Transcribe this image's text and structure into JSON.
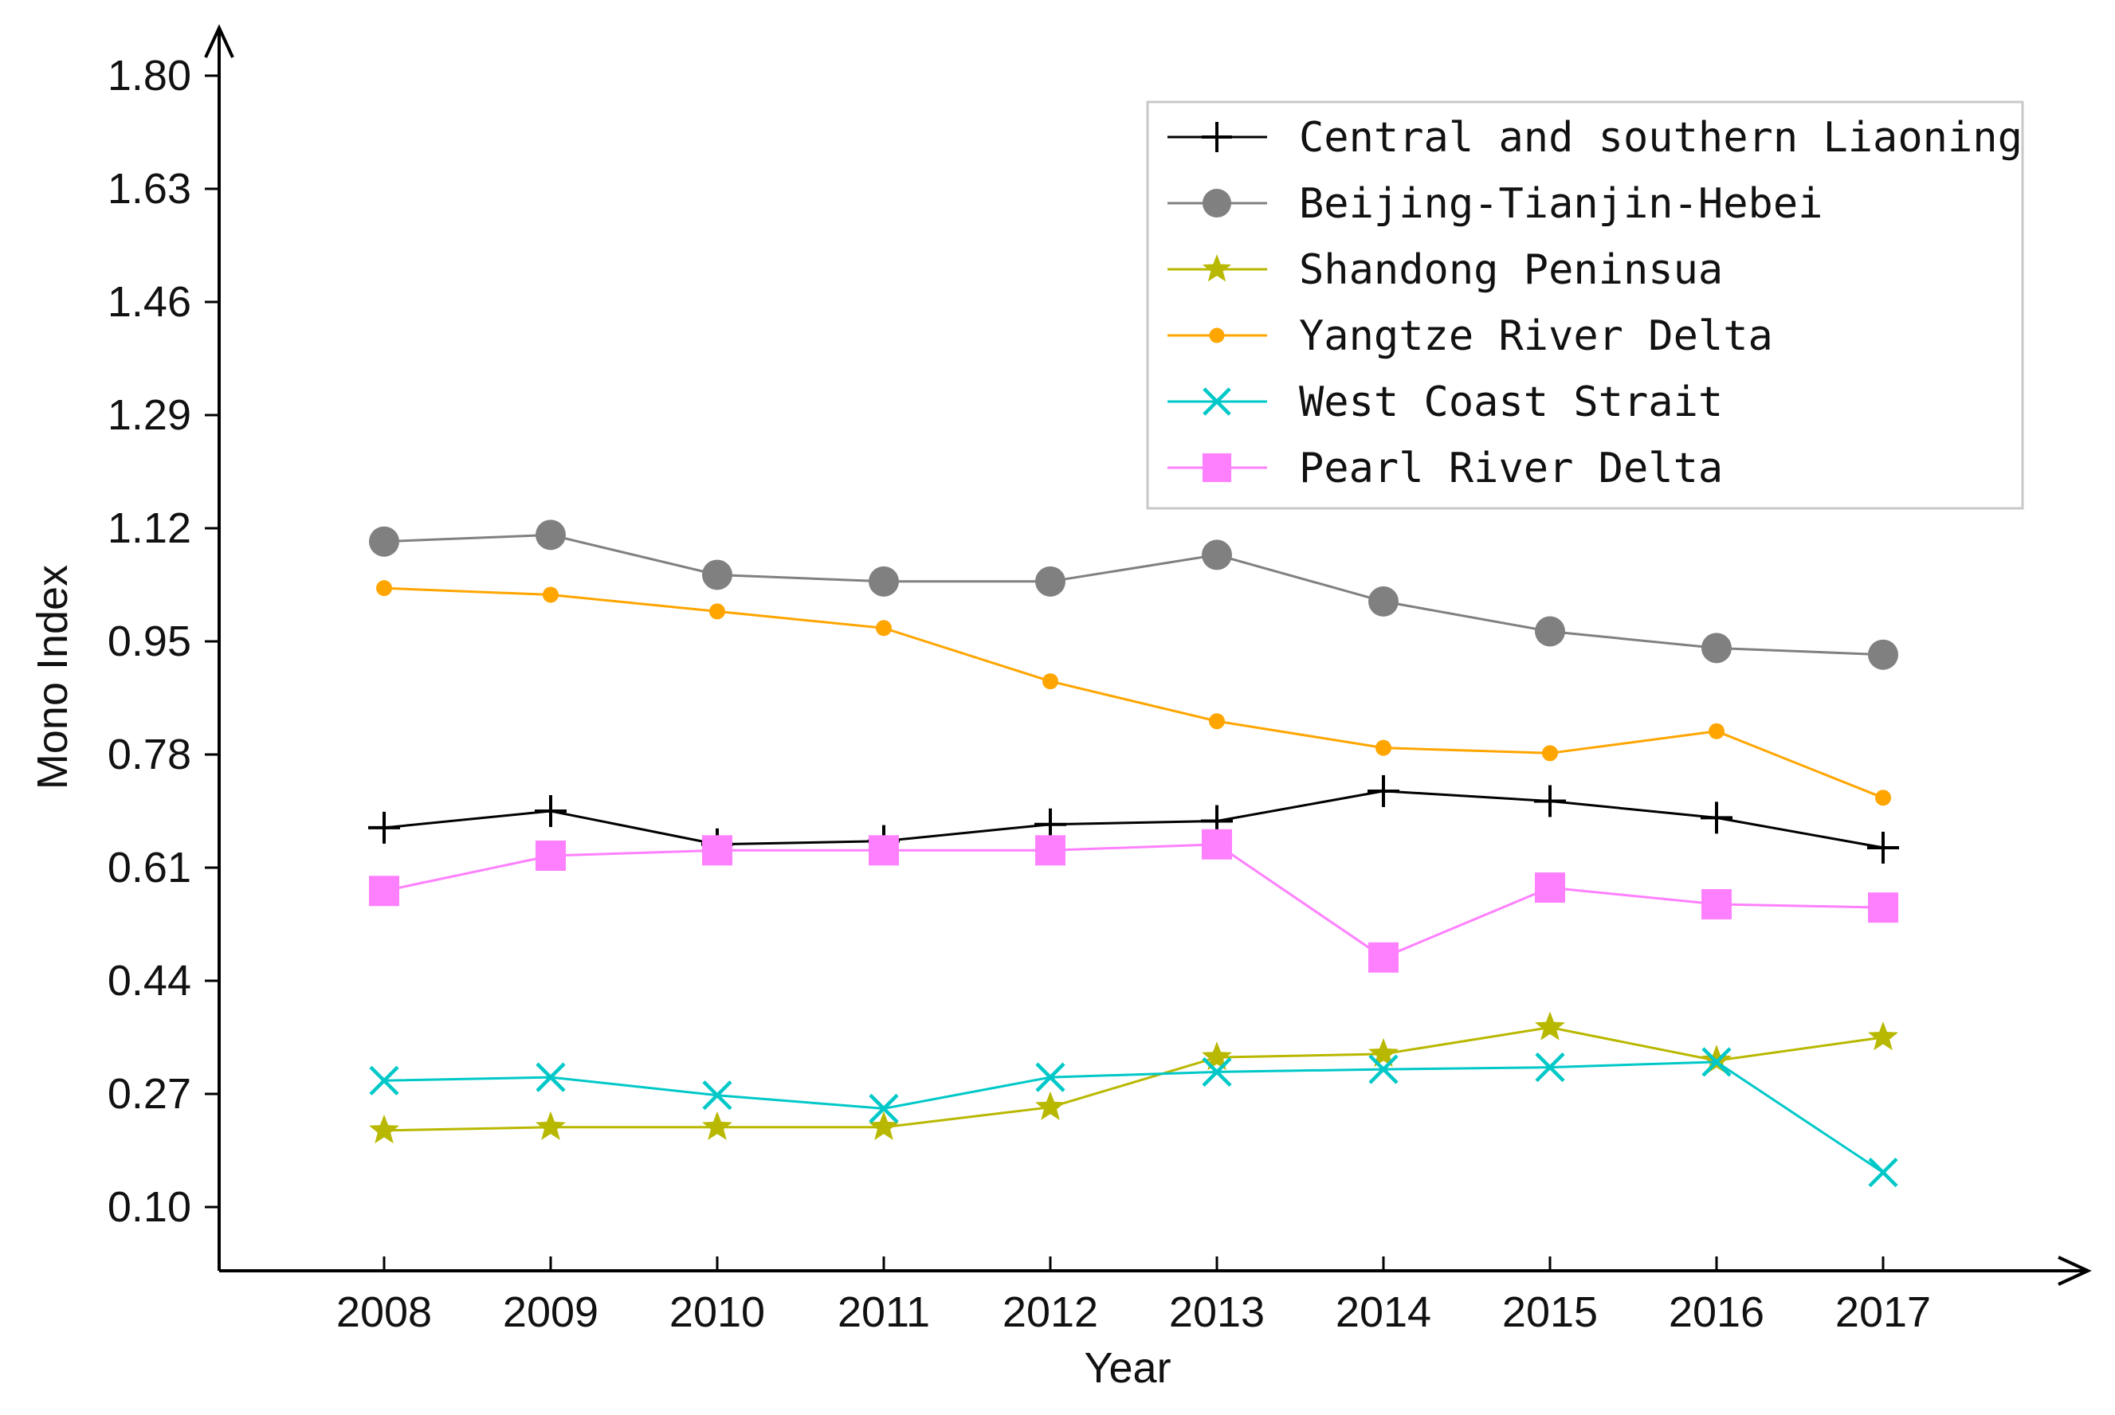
{
  "chart_data": {
    "type": "line",
    "title": "",
    "xlabel": "Year",
    "ylabel": "Mono Index",
    "categories": [
      "2008",
      "2009",
      "2010",
      "2011",
      "2012",
      "2013",
      "2014",
      "2015",
      "2016",
      "2017"
    ],
    "yticks": [
      "1.80",
      "1.63",
      "1.46",
      "1.29",
      "1.12",
      "0.95",
      "0.78",
      "0.61",
      "0.44",
      "0.27",
      "0.10"
    ],
    "ylim": [
      0.0,
      1.8
    ],
    "grid": false,
    "legend_position": "top-right",
    "series": [
      {
        "name": "Central and southern Liaoning",
        "marker": "plus",
        "color": "#000000",
        "values": [
          0.67,
          0.695,
          0.645,
          0.65,
          0.675,
          0.68,
          0.725,
          0.71,
          0.685,
          0.64
        ]
      },
      {
        "name": "Beijing-Tianjin-Hebei",
        "marker": "circle",
        "color": "#808080",
        "values": [
          1.1,
          1.11,
          1.05,
          1.04,
          1.04,
          1.08,
          1.01,
          0.965,
          0.94,
          0.93
        ]
      },
      {
        "name": "Shandong Peninsua",
        "marker": "star",
        "color": "#b8b800",
        "values": [
          0.215,
          0.22,
          0.22,
          0.22,
          0.25,
          0.325,
          0.33,
          0.37,
          0.32,
          0.355
        ]
      },
      {
        "name": "Yangtze River Delta",
        "marker": "dot",
        "color": "#ffa500",
        "values": [
          1.03,
          1.02,
          0.995,
          0.97,
          0.89,
          0.83,
          0.79,
          0.782,
          0.815,
          0.715
        ]
      },
      {
        "name": "West Coast Strait",
        "marker": "x",
        "color": "#00c8c8",
        "values": [
          0.29,
          0.295,
          0.268,
          0.248,
          0.295,
          0.303,
          0.307,
          0.31,
          0.318,
          0.152
        ]
      },
      {
        "name": "Pearl River Delta",
        "marker": "square",
        "color": "#ff80ff",
        "values": [
          0.575,
          0.628,
          0.636,
          0.636,
          0.636,
          0.645,
          0.475,
          0.58,
          0.555,
          0.55
        ]
      }
    ]
  }
}
